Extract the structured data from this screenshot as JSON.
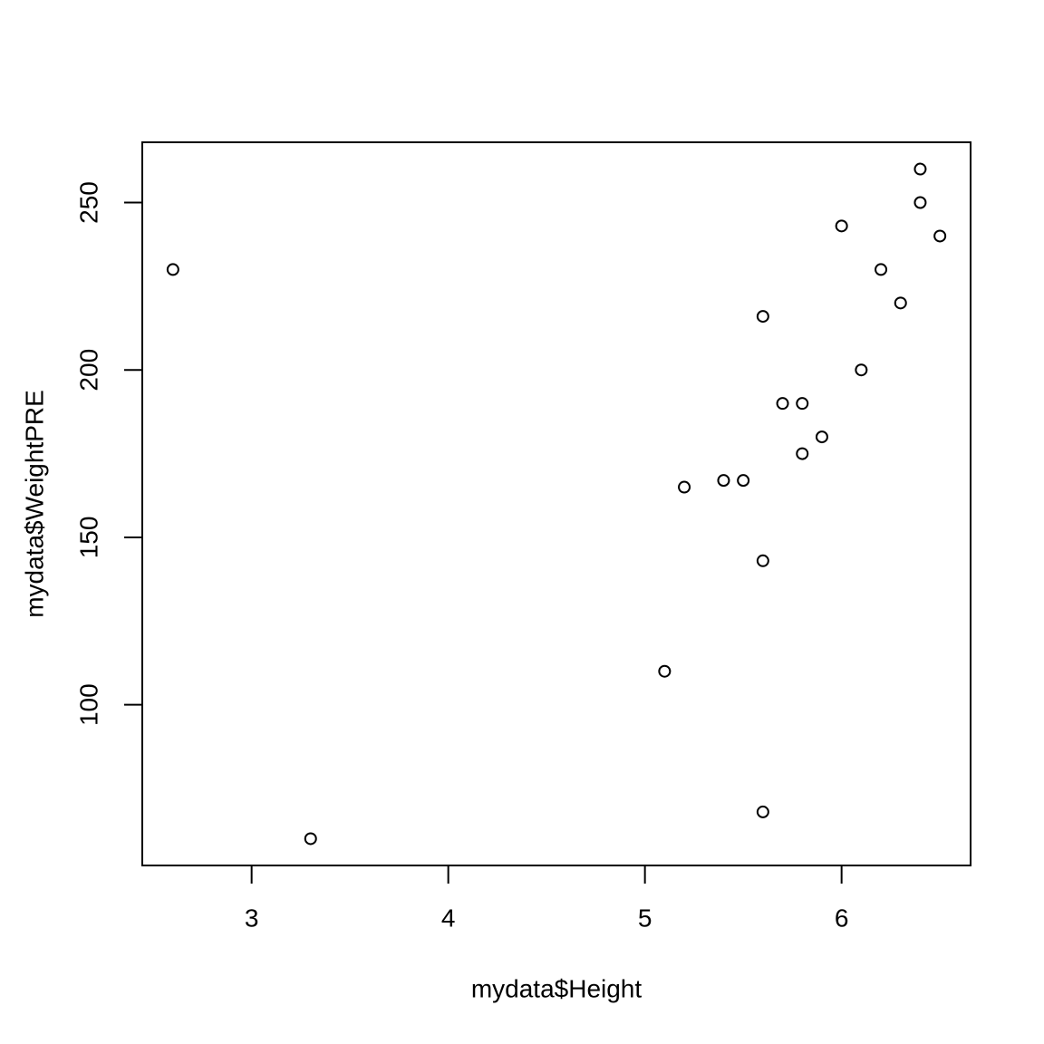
{
  "chart_data": {
    "type": "scatter",
    "x_label": "mydata$Height",
    "y_label": "mydata$WeightPRE",
    "x": [
      2.6,
      3.3,
      5.1,
      5.2,
      5.4,
      5.5,
      5.6,
      5.6,
      5.6,
      5.7,
      5.8,
      5.8,
      5.9,
      6.0,
      6.1,
      6.2,
      6.3,
      6.4,
      6.4,
      6.5
    ],
    "y": [
      230,
      60,
      110,
      165,
      167,
      167,
      216,
      143,
      68,
      190,
      190,
      175,
      180,
      243,
      200,
      230,
      220,
      260,
      250,
      240
    ],
    "color": "#000000",
    "xlim": [
      2.444,
      6.656
    ],
    "ylim": [
      52,
      268
    ],
    "xticks": [
      3,
      4,
      5,
      6
    ],
    "yticks": [
      100,
      150,
      200,
      250
    ]
  }
}
